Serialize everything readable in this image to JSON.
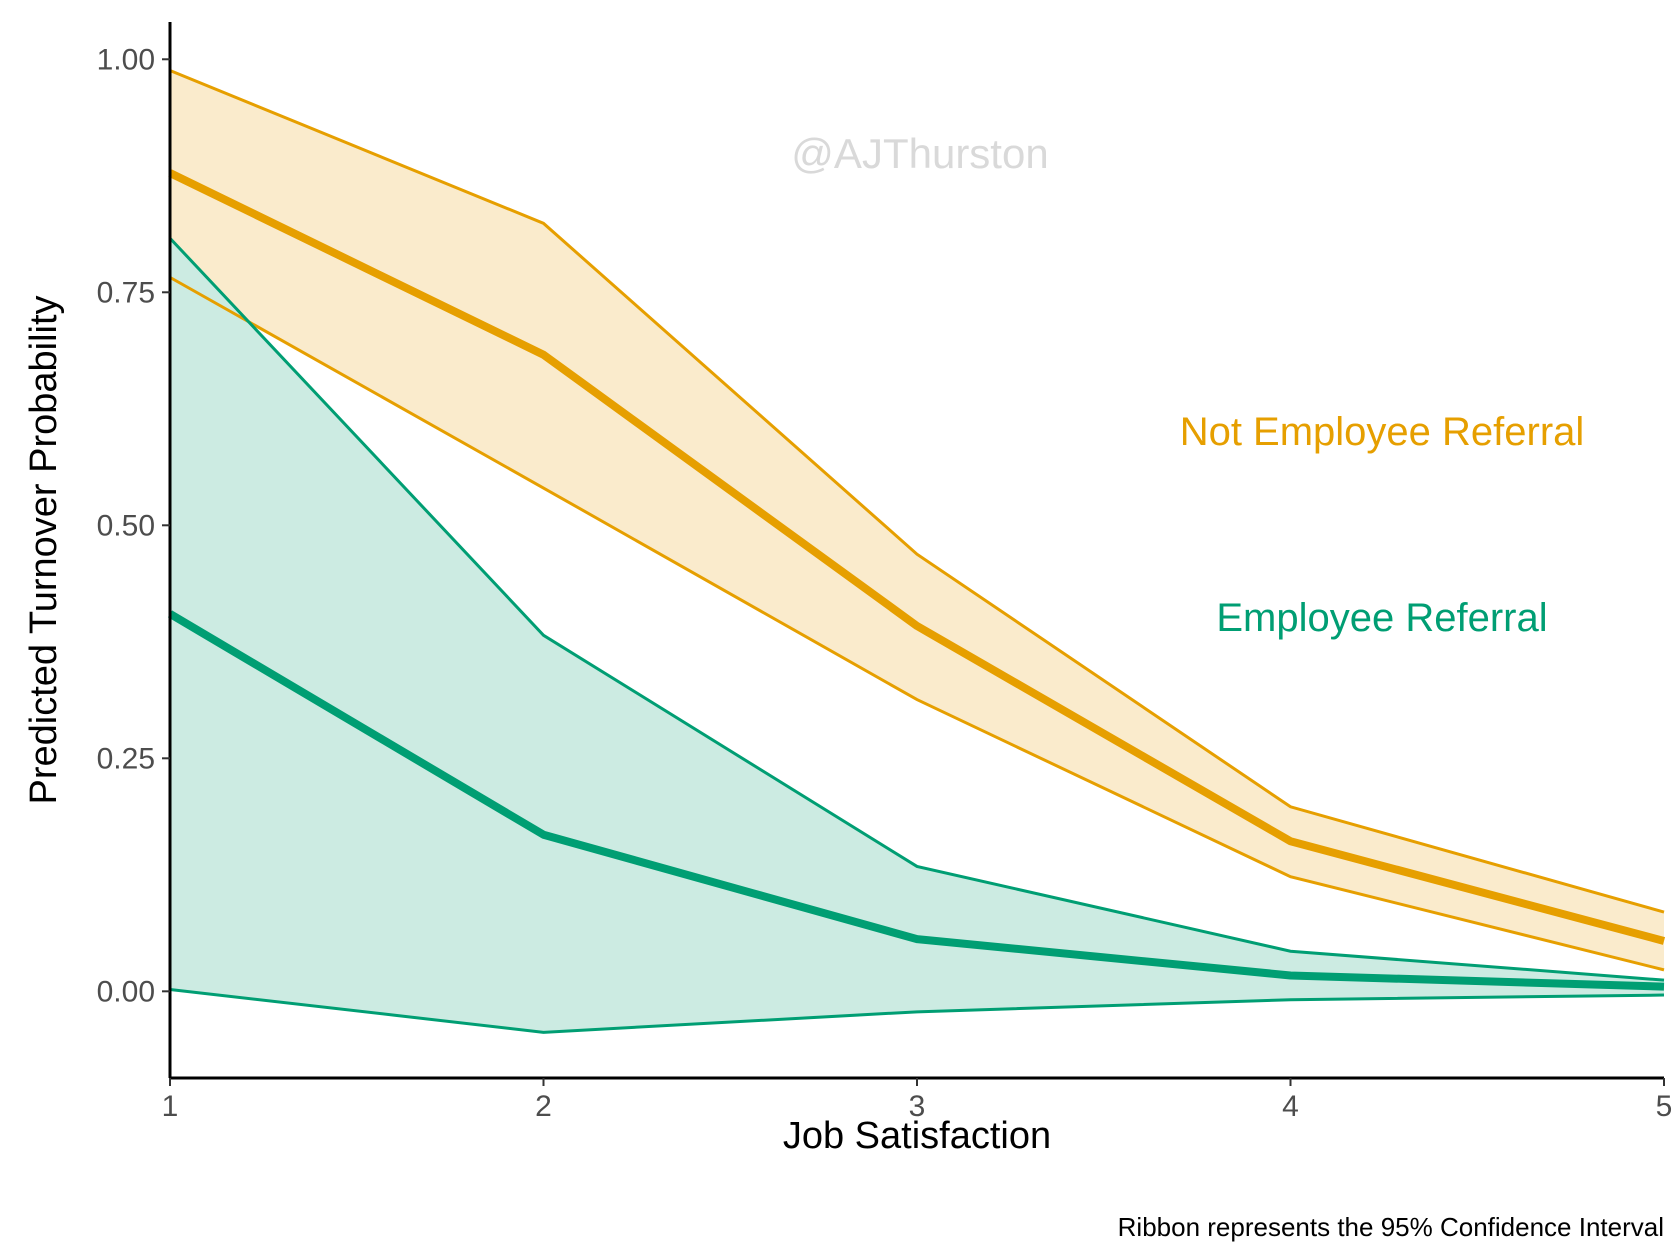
{
  "chart_data": {
    "type": "line",
    "xlabel": "Job Satisfaction",
    "ylabel": "Predicted Turnover Probability",
    "caption": "Ribbon represents the 95% Confidence Interval",
    "watermark": "@AJThurston",
    "xlim": [
      1,
      5
    ],
    "ylim": [
      -0.093,
      1.04
    ],
    "x_ticks": [
      "1",
      "2",
      "3",
      "4",
      "5"
    ],
    "y_ticks": [
      "0.00",
      "0.25",
      "0.50",
      "0.75",
      "1.00"
    ],
    "grid": false,
    "x": [
      1,
      2,
      3,
      4,
      5
    ],
    "series": [
      {
        "name": "Not Employee Referral",
        "color": "#E69F00",
        "fill": "#FAEBCC",
        "values": [
          0.878,
          0.683,
          0.392,
          0.161,
          0.054
        ],
        "lower": [
          0.766,
          0.54,
          0.313,
          0.123,
          0.023
        ],
        "upper": [
          0.988,
          0.824,
          0.469,
          0.198,
          0.085
        ]
      },
      {
        "name": "Employee Referral",
        "color": "#009E73",
        "fill": "#CCEBE2",
        "values": [
          0.405,
          0.168,
          0.056,
          0.017,
          0.005
        ],
        "lower": [
          0.002,
          -0.044,
          -0.022,
          -0.009,
          -0.004
        ],
        "upper": [
          0.808,
          0.382,
          0.134,
          0.043,
          0.012
        ]
      }
    ]
  }
}
